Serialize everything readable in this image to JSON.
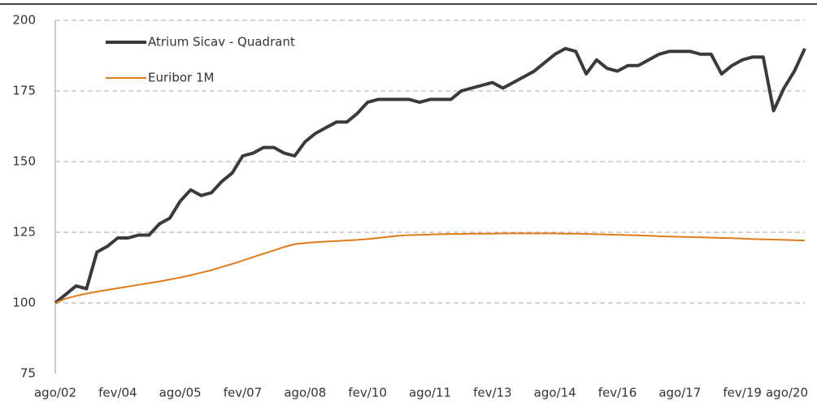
{
  "chart_data": {
    "type": "line",
    "categories": [
      "ago/02",
      null,
      null,
      null,
      null,
      null,
      "fev/04",
      null,
      null,
      null,
      null,
      null,
      "ago/05",
      null,
      null,
      null,
      null,
      null,
      "fev/07",
      null,
      null,
      null,
      null,
      null,
      "ago/08",
      null,
      null,
      null,
      null,
      null,
      "fev/10",
      null,
      null,
      null,
      null,
      null,
      "ago/11",
      null,
      null,
      null,
      null,
      null,
      "fev/13",
      null,
      null,
      null,
      null,
      null,
      "ago/14",
      null,
      null,
      null,
      null,
      null,
      "fev/16",
      null,
      null,
      null,
      null,
      null,
      "ago/17",
      null,
      null,
      null,
      null,
      null,
      "fev/19",
      null,
      null,
      null,
      null,
      null,
      "ago/20"
    ],
    "series": [
      {
        "name": "Atrium Sicav - Quadrant",
        "color": "#3a3a3a",
        "values": [
          100,
          103,
          106,
          105,
          118,
          120,
          123,
          123,
          124,
          124,
          128,
          130,
          136,
          140,
          138,
          139,
          143,
          146,
          152,
          153,
          155,
          155,
          153,
          152,
          157,
          160,
          162,
          164,
          164,
          167,
          171,
          172,
          172,
          172,
          172,
          171,
          172,
          172,
          172,
          175,
          176,
          177,
          178,
          176,
          178,
          180,
          182,
          185,
          188,
          190,
          189,
          181,
          186,
          183,
          182,
          184,
          184,
          186,
          188,
          189,
          189,
          189,
          188,
          188,
          181,
          184,
          186,
          187,
          187,
          168,
          176,
          182,
          190
        ]
      },
      {
        "name": "Euribor 1M",
        "color": "#e07b1a",
        "values": [
          100,
          101.5,
          102.5,
          103.3,
          104,
          104.6,
          105.2,
          105.8,
          106.4,
          107,
          107.6,
          108.3,
          109,
          109.8,
          110.7,
          111.6,
          112.7,
          113.8,
          115,
          116.2,
          117.4,
          118.6,
          119.8,
          120.8,
          121.2,
          121.5,
          121.7,
          121.9,
          122.1,
          122.3,
          122.6,
          123,
          123.4,
          123.8,
          124,
          124.1,
          124.2,
          124.3,
          124.4,
          124.4,
          124.5,
          124.5,
          124.5,
          124.6,
          124.6,
          124.6,
          124.6,
          124.6,
          124.6,
          124.5,
          124.5,
          124.4,
          124.3,
          124.2,
          124.1,
          124,
          123.9,
          123.8,
          123.6,
          123.5,
          123.4,
          123.3,
          123.2,
          123.1,
          123,
          122.9,
          122.8,
          122.6,
          122.5,
          122.4,
          122.3,
          122.2,
          122.1
        ]
      }
    ],
    "ylim": [
      75,
      200
    ],
    "yticks": [
      75,
      100,
      125,
      150,
      175,
      200
    ],
    "grid": true,
    "legend": "top-left"
  }
}
